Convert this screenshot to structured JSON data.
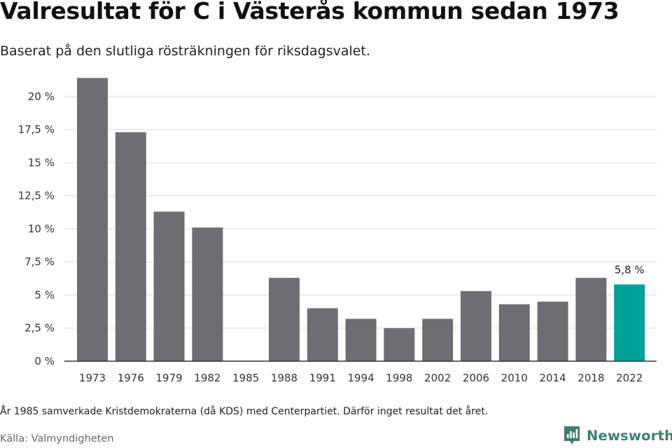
{
  "header": {
    "title": "Valresultat för C i Västerås kommun sedan 1973",
    "subtitle": "Baserat på den slutliga rösträkningen för riksdagsvalet."
  },
  "chart_data": {
    "type": "bar",
    "categories": [
      "1973",
      "1976",
      "1979",
      "1982",
      "1985",
      "1988",
      "1991",
      "1994",
      "1998",
      "2002",
      "2006",
      "2010",
      "2014",
      "2018",
      "2022"
    ],
    "values": [
      21.4,
      17.3,
      11.3,
      10.1,
      null,
      6.3,
      4.0,
      3.2,
      2.5,
      3.2,
      5.3,
      4.3,
      4.5,
      6.3,
      5.8
    ],
    "ylim": [
      0,
      22
    ],
    "yticks": [
      0,
      2.5,
      5,
      7.5,
      10,
      12.5,
      15,
      17.5,
      20
    ],
    "ytick_labels": [
      "0 %",
      "2,5 %",
      "5 %",
      "7,5 %",
      "10 %",
      "12,5 %",
      "15 %",
      "17,5 %",
      "20 %"
    ],
    "grid": true,
    "highlight_index": 14,
    "data_labels": {
      "14": "5,8 %"
    },
    "colors": {
      "bar": "#6e6d74",
      "highlight": "#00a19a",
      "grid": "#d9d9d9",
      "axis": "#333333"
    }
  },
  "footer": {
    "note": "År 1985 samverkade Kristdemokraterna (då KDS) med Centerpartiet. Därför inget resultat det året.",
    "source": "Källa: Valmyndigheten",
    "brand": "Newsworthy",
    "brand_icon": "newsworthy-logo-icon",
    "brand_color": "#3f7f72"
  }
}
